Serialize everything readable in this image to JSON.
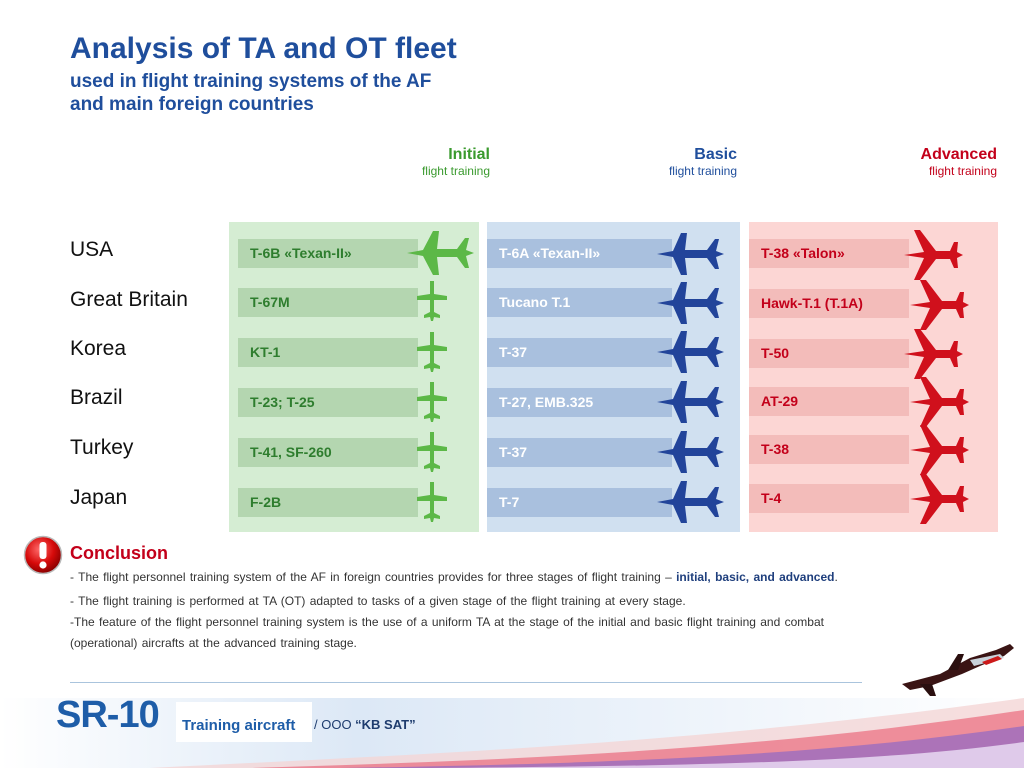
{
  "header": {
    "title": "Analysis of TA and OT fleet",
    "subtitle_line1": "used in flight training systems of the AF",
    "subtitle_line2": "and main foreign countries"
  },
  "stages": [
    {
      "name": "Initial",
      "sub": "flight training",
      "color": "#3a9a2e"
    },
    {
      "name": "Basic",
      "sub": "flight training",
      "color": "#1f4e9c"
    },
    {
      "name": "Advanced",
      "sub": "flight training",
      "color": "#c3001a"
    }
  ],
  "countries": [
    "USA",
    "Great Britain",
    "Korea",
    "Brazil",
    "Turkey",
    "Japan"
  ],
  "aircraft": {
    "initial": [
      "T-6B «Texan-II»",
      "T-67M",
      "KT-1",
      "T-23; T-25",
      "T-41, SF-260",
      "F-2B"
    ],
    "basic": [
      "T-6A «Texan-II»",
      "Tucano T.1",
      "T-37",
      "T-27, EMB.325",
      "T-37",
      "T-7"
    ],
    "advanced": [
      "T-38 «Talon»",
      "Hawk-T.1 (T.1A)",
      "T-50",
      "AT-29",
      "T-38",
      "T-4"
    ]
  },
  "conclusion": {
    "title": "Conclusion",
    "line1_prefix": "- The flight personnel training system of the AF in foreign countries provides for three stages of flight training – ",
    "line1_emph": "initial, basic, and advanced",
    "line1_suffix": ".",
    "line2": "- The flight training is performed at TA (OT) adapted to tasks of a given stage of the flight training at every stage.",
    "line3": "-The feature of the flight personnel training system is the use of a uniform TA at the stage of the initial and basic flight training and combat",
    "line4": "(operational) aircrafts at the advanced training stage."
  },
  "footer": {
    "logo": "SR-10",
    "logo_sub": "Training aircraft",
    "company_prefix": "/ OOO ",
    "company_name": "“KB SAT”"
  },
  "colors": {
    "title": "#1f4e9c",
    "initial_plane": "#5cb847",
    "basic_plane": "#22449a",
    "advanced_plane": "#d0101c",
    "conclusion": "#c3001a"
  },
  "icons": {
    "conclusion": "exclamation-icon",
    "jet": "jet-silhouette-icon"
  }
}
